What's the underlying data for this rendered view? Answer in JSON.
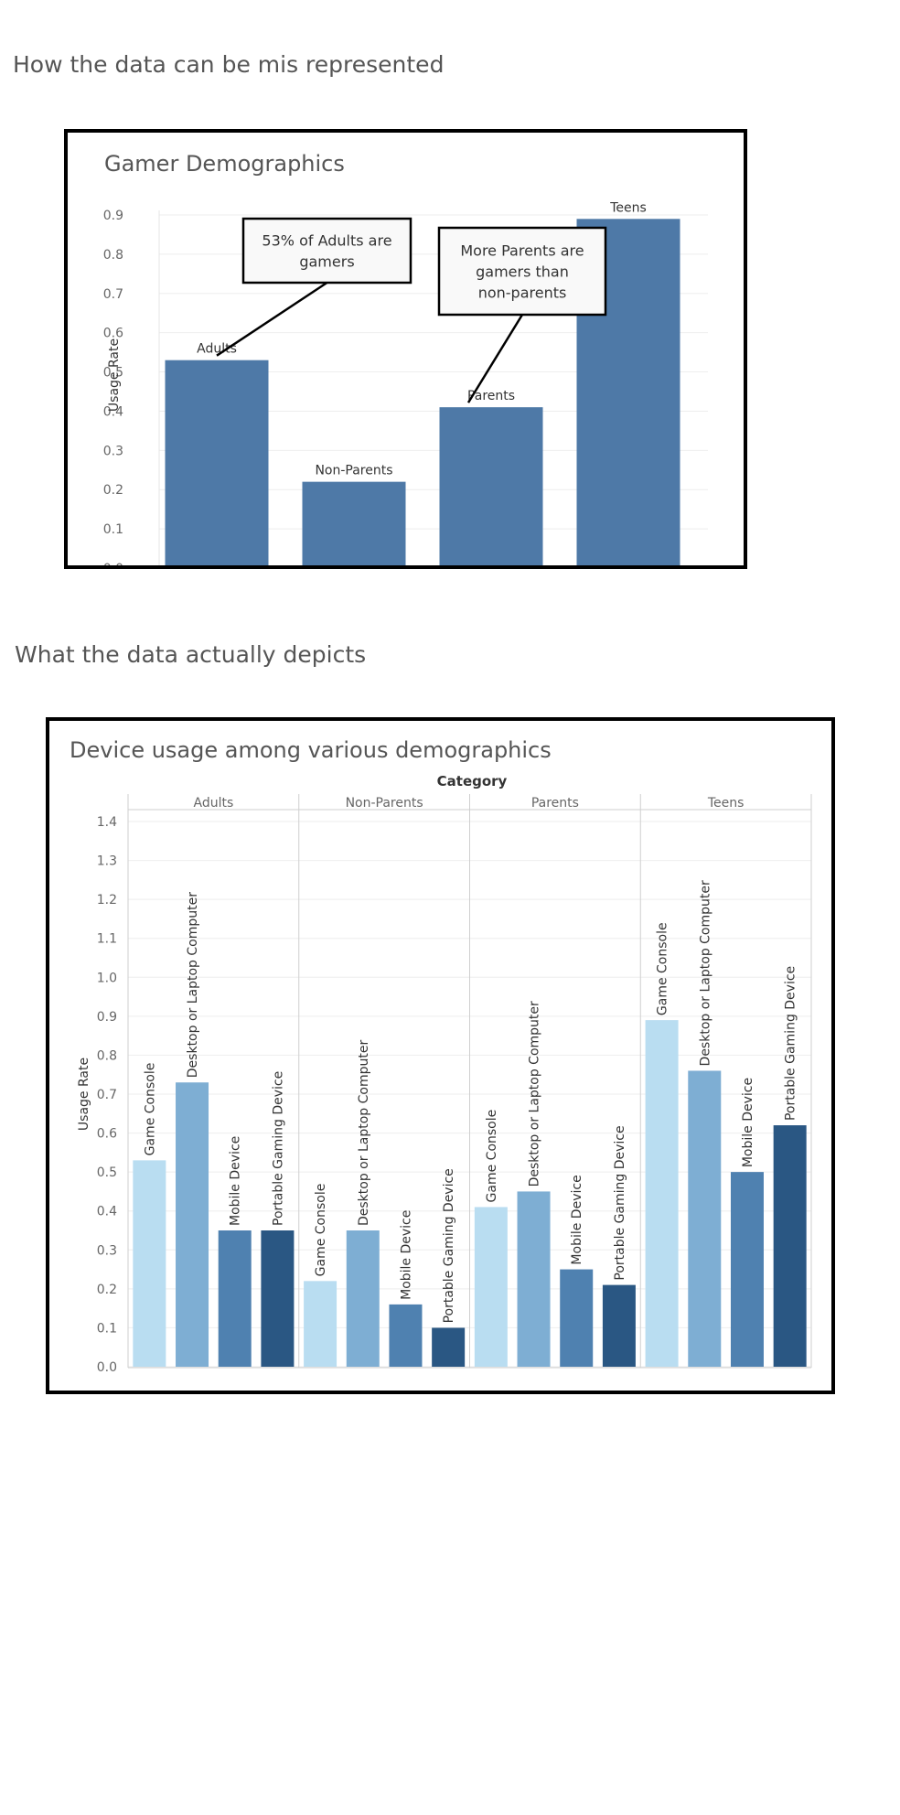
{
  "headings": {
    "misrepresented": "How the data can be mis represented",
    "actual": "What the data actually depicts"
  },
  "colors": {
    "bar_single": "#4e79a7",
    "game_console": "#b9ddf1",
    "desktop_or_laptop": "#7eaed3",
    "mobile_device": "#4f81b0",
    "portable_gaming": "#2a5783",
    "text": "#555555",
    "frame": "#000000"
  },
  "chart_data": [
    {
      "type": "bar",
      "title": "Gamer Demographics",
      "xlabel": "",
      "ylabel": "Usage Rate",
      "categories": [
        "Adults",
        "Non-Parents",
        "Parents",
        "Teens"
      ],
      "values": [
        0.53,
        0.22,
        0.41,
        0.89
      ],
      "ylim": [
        0,
        0.9
      ],
      "yticks": [
        "0.0",
        "0.1",
        "0.2",
        "0.3",
        "0.4",
        "0.5",
        "0.6",
        "0.7",
        "0.8",
        "0.9"
      ],
      "grid": true,
      "annotations": [
        {
          "text_lines": [
            "53% of Adults are",
            "gamers"
          ],
          "target": "Adults"
        },
        {
          "text_lines": [
            "More Parents are",
            "gamers than",
            "non-parents"
          ],
          "target": "Parents"
        }
      ]
    },
    {
      "type": "bar",
      "title": "Device usage among various demographics",
      "xlabel": "Category",
      "ylabel": "Usage Rate",
      "categories": [
        "Adults",
        "Non-Parents",
        "Parents",
        "Teens"
      ],
      "devices": [
        "Game Console",
        "Desktop or Laptop Computer",
        "Mobile Device",
        "Portable Gaming Device"
      ],
      "series": [
        {
          "name": "Game Console",
          "values": [
            0.53,
            0.22,
            0.41,
            0.89
          ]
        },
        {
          "name": "Desktop or Laptop Computer",
          "values": [
            0.73,
            0.35,
            0.45,
            0.76
          ]
        },
        {
          "name": "Mobile Device",
          "values": [
            0.35,
            0.16,
            0.25,
            0.5
          ]
        },
        {
          "name": "Portable Gaming Device",
          "values": [
            0.35,
            0.1,
            0.21,
            0.62
          ]
        }
      ],
      "ylim": [
        0,
        1.4
      ],
      "yticks": [
        "0.0",
        "0.1",
        "0.2",
        "0.3",
        "0.4",
        "0.5",
        "0.6",
        "0.7",
        "0.8",
        "0.9",
        "1.0",
        "1.1",
        "1.2",
        "1.3",
        "1.4"
      ],
      "grid": true
    }
  ]
}
